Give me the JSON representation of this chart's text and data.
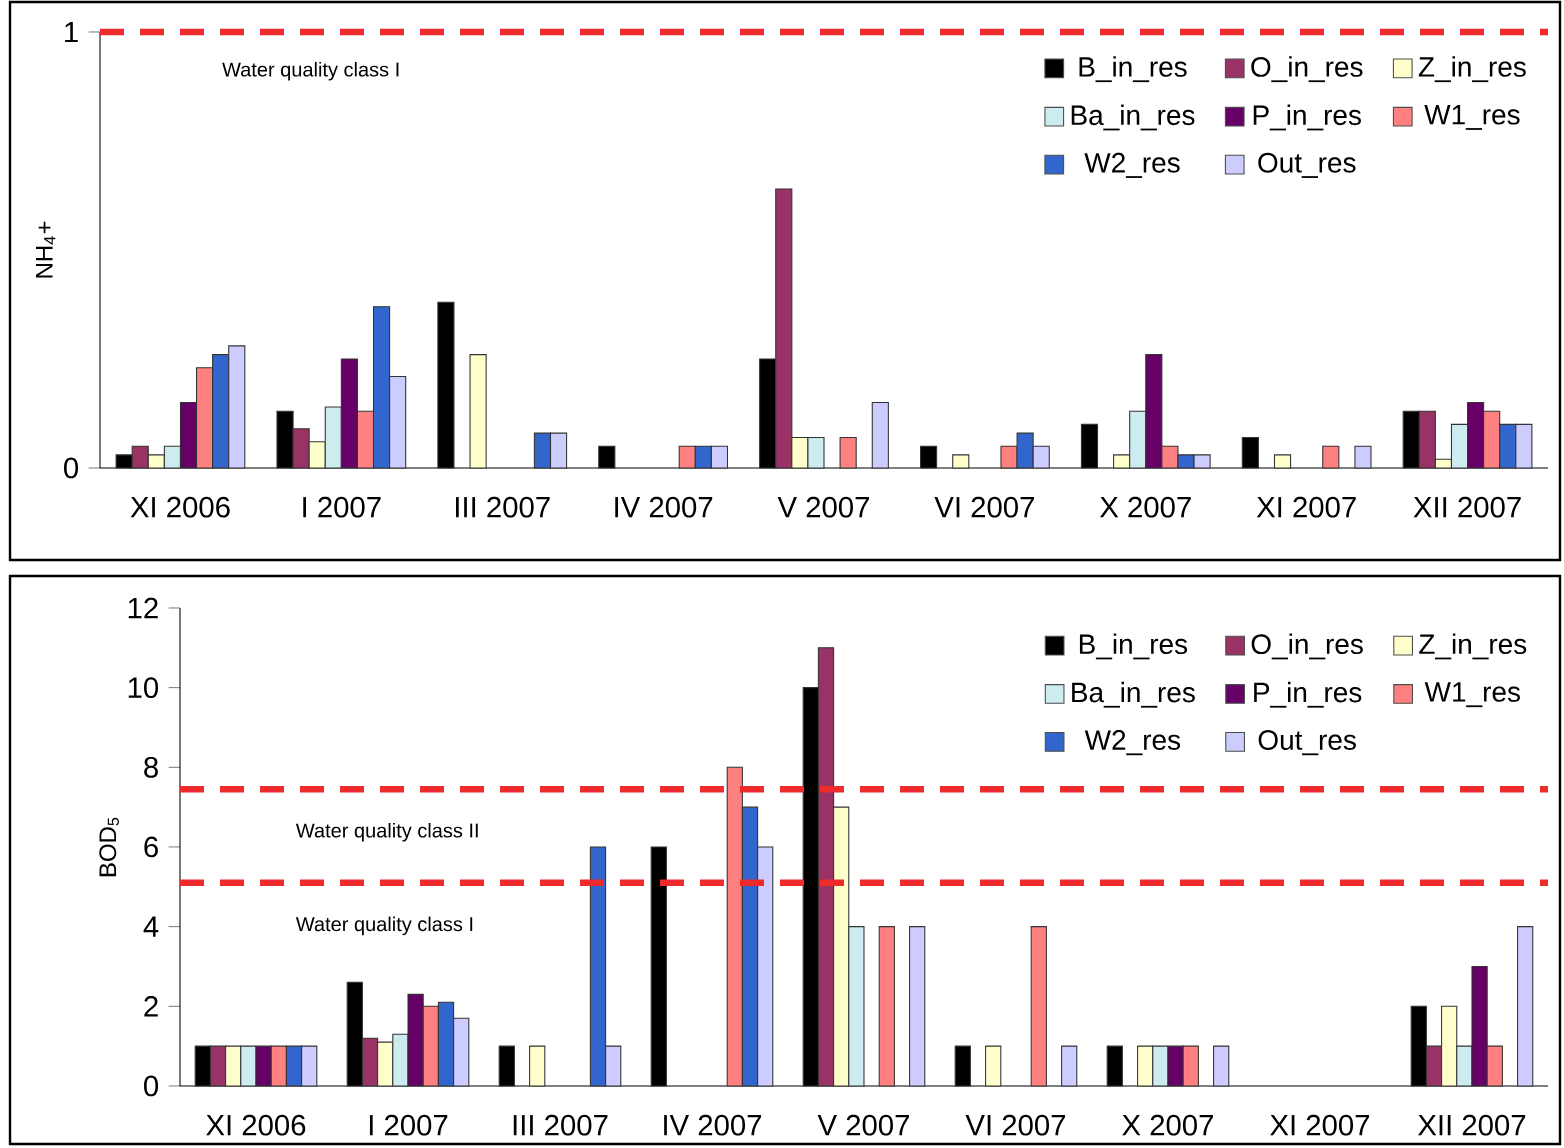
{
  "chart_data": [
    {
      "type": "bar",
      "ylabel": "NH$_{4}$+",
      "categories": [
        "XI 2006",
        "I 2007",
        "III 2007",
        "IV 2007",
        "V 2007",
        "VI 2007",
        "X 2007",
        "XI 2007",
        "XII 2007"
      ],
      "ylim": [
        0,
        1
      ],
      "yticks": [
        0,
        1
      ],
      "legend": "top right",
      "series": [
        {
          "name": "B_in_res",
          "color": "#000000",
          "values": [
            0.03,
            0.13,
            0.38,
            0.05,
            0.25,
            0.05,
            0.1,
            0.07,
            0.13
          ]
        },
        {
          "name": "O_in_res",
          "color": "#993366",
          "values": [
            0.05,
            0.09,
            null,
            null,
            0.64,
            null,
            null,
            null,
            0.13
          ]
        },
        {
          "name": "Z_in_res",
          "color": "#ffffcc",
          "values": [
            0.03,
            0.06,
            0.26,
            null,
            0.07,
            0.03,
            0.03,
            0.03,
            0.02
          ]
        },
        {
          "name": "Ba_in_res",
          "color": "#ccecf0",
          "values": [
            0.05,
            0.14,
            null,
            null,
            0.07,
            null,
            0.13,
            null,
            0.1
          ]
        },
        {
          "name": "P_in_res",
          "color": "#660066",
          "values": [
            0.15,
            0.25,
            null,
            null,
            null,
            null,
            0.26,
            null,
            0.15
          ]
        },
        {
          "name": "W1_res",
          "color": "#ff8080",
          "values": [
            0.23,
            0.13,
            null,
            0.05,
            0.07,
            0.05,
            0.05,
            0.05,
            0.13
          ]
        },
        {
          "name": "W2_res",
          "color": "#3366cc",
          "values": [
            0.26,
            0.37,
            0.08,
            0.05,
            null,
            0.08,
            0.03,
            null,
            0.1
          ]
        },
        {
          "name": "Out_res",
          "color": "#ccccff",
          "values": [
            0.28,
            0.21,
            0.08,
            0.05,
            0.15,
            0.05,
            0.03,
            0.05,
            0.1
          ]
        }
      ],
      "ref_lines": [
        {
          "axis": "y",
          "value": 1,
          "label": "Water quality class I",
          "color": "#ee2a2a",
          "line_style": "dashed"
        }
      ]
    },
    {
      "type": "bar",
      "ylabel": "BOD$_{5}$",
      "categories": [
        "XI 2006",
        "I 2007",
        "III 2007",
        "IV 2007",
        "V 2007",
        "VI 2007",
        "X 2007",
        "XI 2007",
        "XII 2007"
      ],
      "ylim": [
        0,
        12
      ],
      "yticks": [
        0,
        2,
        4,
        6,
        8,
        10,
        12
      ],
      "legend": "top right",
      "series": [
        {
          "name": "B_in_res",
          "color": "#000000",
          "values": [
            1,
            2.6,
            1,
            6,
            10,
            1,
            1,
            null,
            2
          ]
        },
        {
          "name": "O_in_res",
          "color": "#993366",
          "values": [
            1,
            1.2,
            null,
            null,
            11,
            null,
            null,
            null,
            1
          ]
        },
        {
          "name": "Z_in_res",
          "color": "#ffffcc",
          "values": [
            1,
            1.1,
            1,
            null,
            7,
            1,
            1,
            null,
            2
          ]
        },
        {
          "name": "Ba_in_res",
          "color": "#ccecf0",
          "values": [
            1,
            1.3,
            null,
            null,
            4,
            null,
            1,
            null,
            1
          ]
        },
        {
          "name": "P_in_res",
          "color": "#660066",
          "values": [
            1,
            2.3,
            null,
            null,
            null,
            null,
            1,
            null,
            3
          ]
        },
        {
          "name": "W1_res",
          "color": "#ff8080",
          "values": [
            1,
            2.0,
            null,
            8,
            4,
            4,
            1,
            null,
            1
          ]
        },
        {
          "name": "W2_res",
          "color": "#3366cc",
          "values": [
            1,
            2.1,
            6,
            7,
            null,
            null,
            null,
            null,
            null
          ]
        },
        {
          "name": "Out_res",
          "color": "#ccccff",
          "values": [
            1,
            1.7,
            1,
            6,
            4,
            1,
            1,
            null,
            4
          ]
        }
      ],
      "ref_lines": [
        {
          "axis": "y",
          "value": 7.45,
          "label": "Water quality class II",
          "color": "#ee2a2a",
          "line_style": "dashed"
        },
        {
          "axis": "y",
          "value": 5.1,
          "label": "Water quality class I",
          "color": "#ee2a2a",
          "line_style": "dashed"
        }
      ]
    }
  ]
}
